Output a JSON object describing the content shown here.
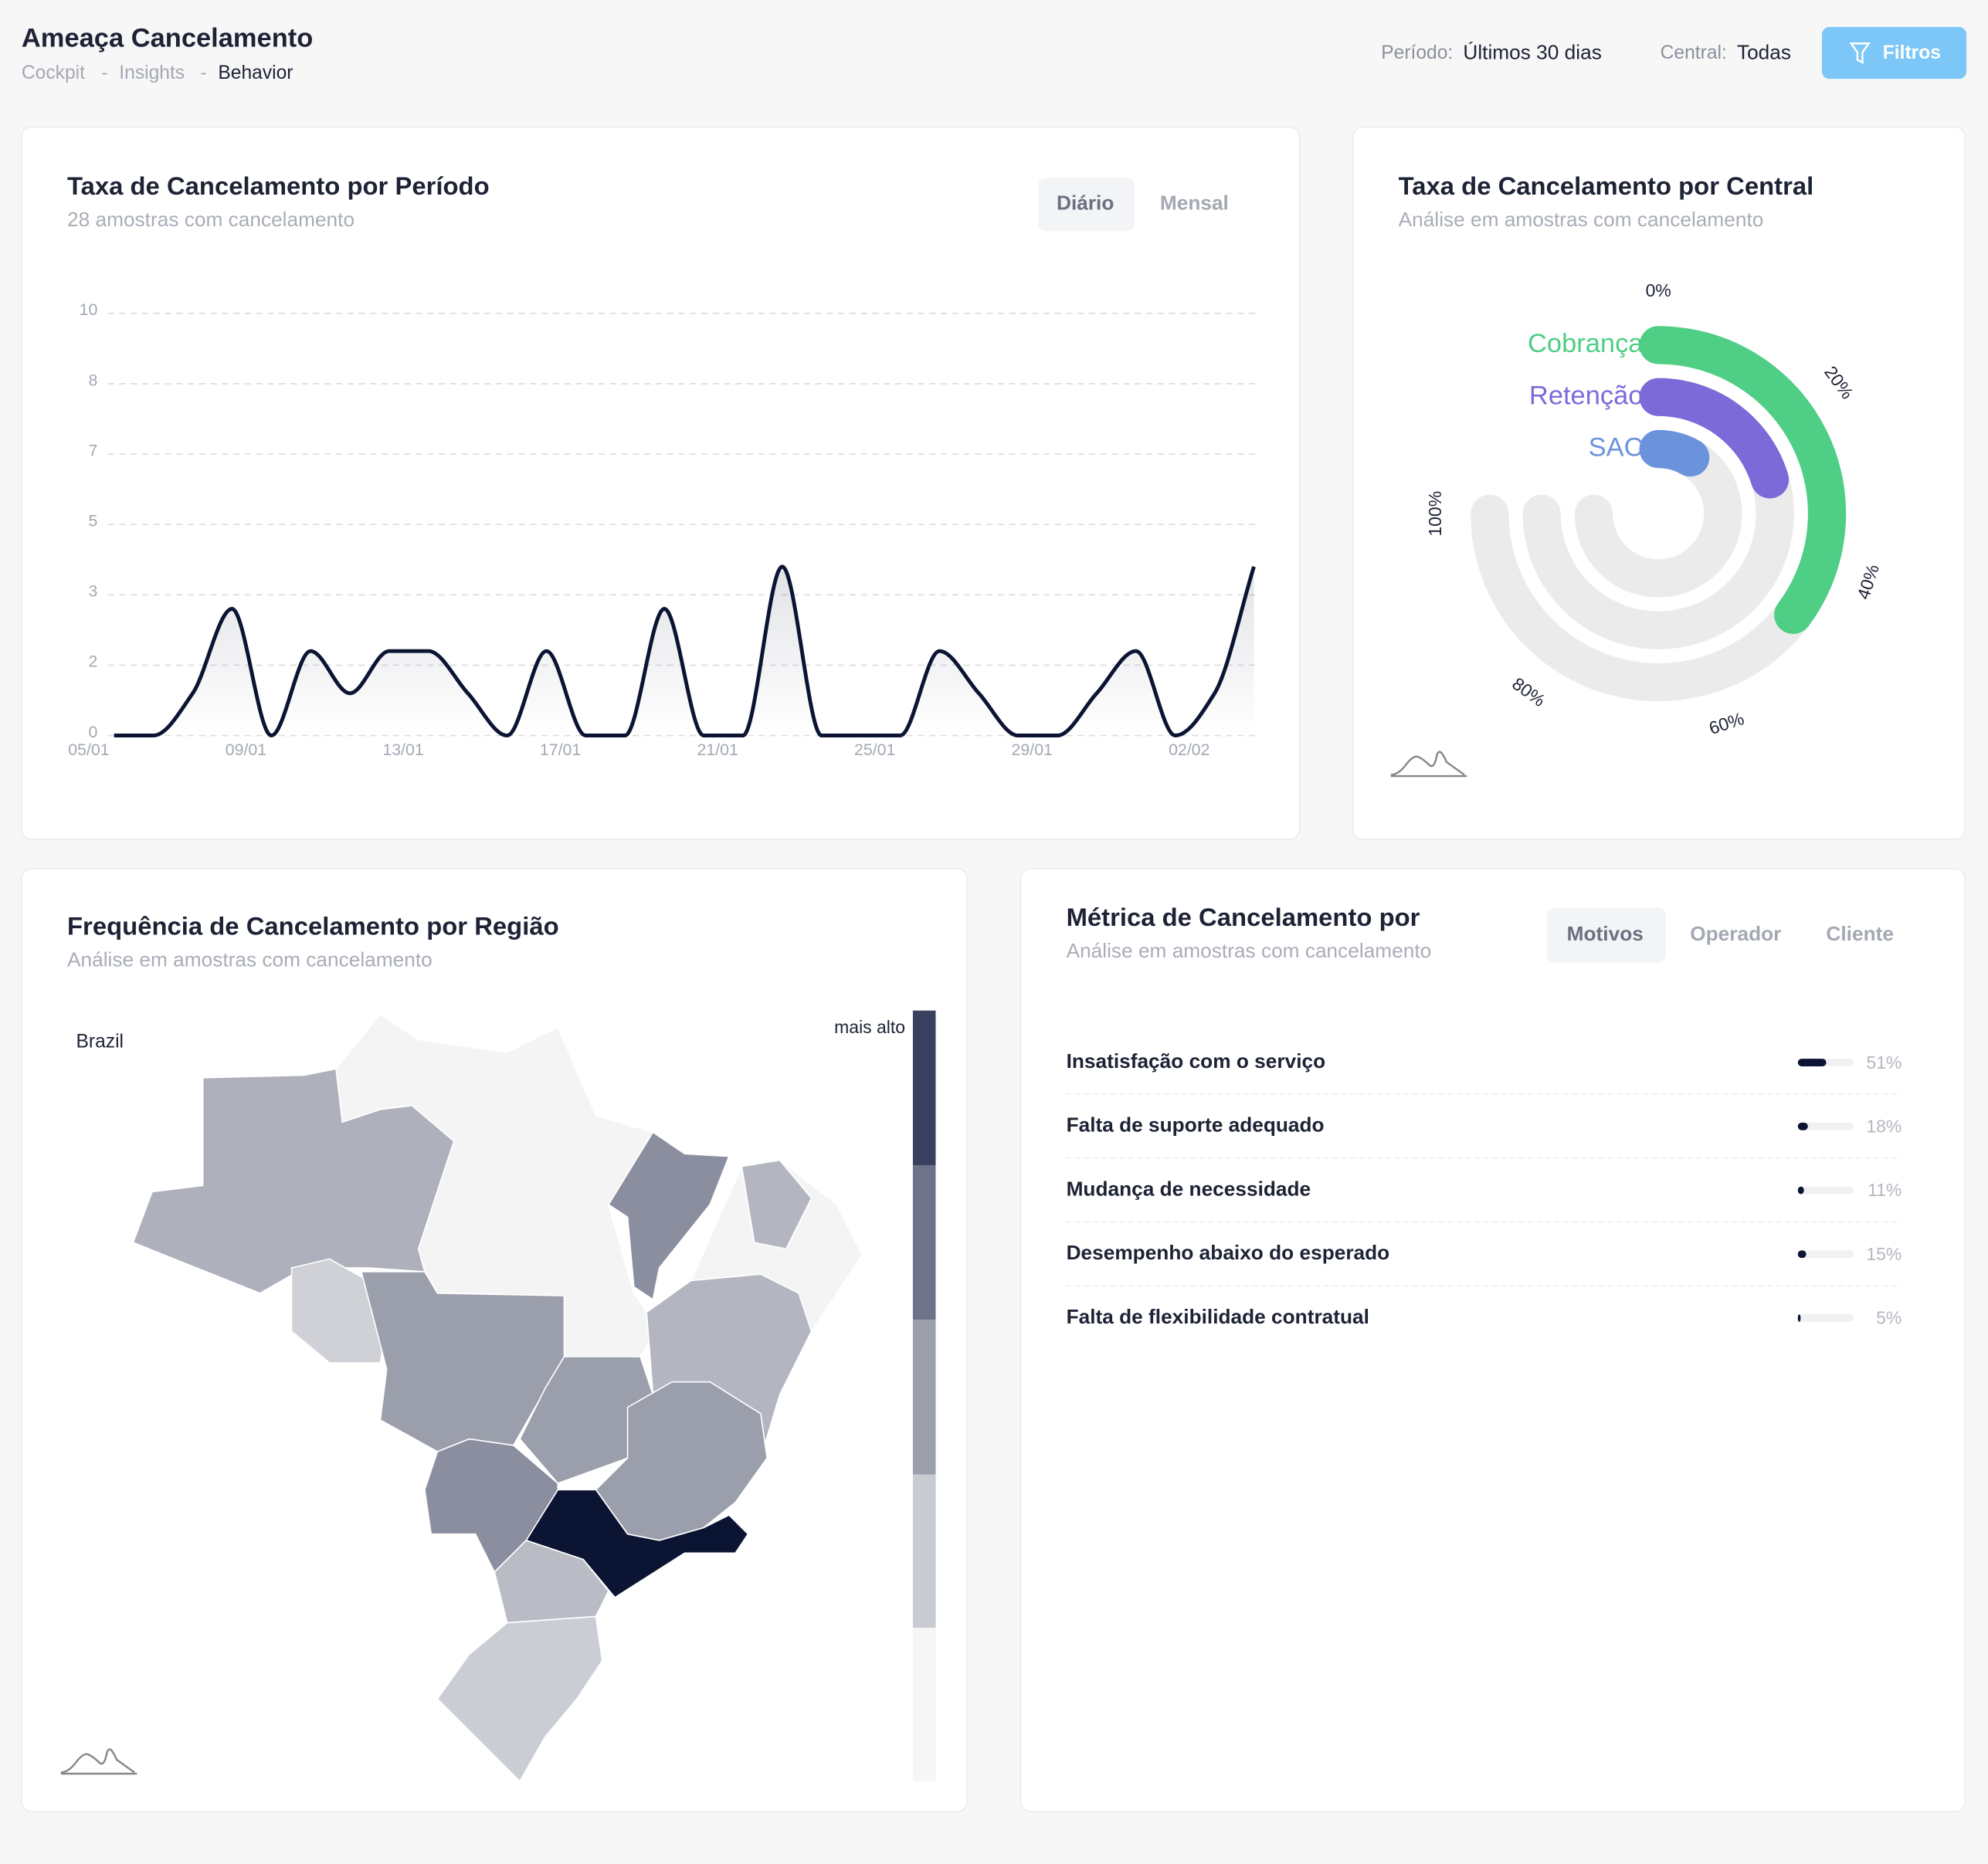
{
  "header": {
    "title": "Ameaça Cancelamento",
    "breadcrumb": [
      "Cockpit",
      "Insights",
      "Behavior"
    ],
    "separator": "-",
    "filters": [
      {
        "label": "Período:",
        "value": "Últimos 30 dias"
      },
      {
        "label": "Central:",
        "value": "Todas"
      }
    ],
    "button": "Filtros"
  },
  "chart_data": [
    {
      "type": "line",
      "title": "Taxa de Cancelamento por Período",
      "subtitle": "28 amostras com cancelamento",
      "tabs": [
        "Diário",
        "Mensal"
      ],
      "active_tab": 0,
      "categories": [
        "05/01",
        null,
        null,
        null,
        "09/01",
        null,
        null,
        null,
        "13/01",
        null,
        null,
        null,
        "17/01",
        null,
        null,
        null,
        "21/01",
        null,
        null,
        null,
        "25/01",
        null,
        null,
        null,
        "29/01",
        null,
        null,
        null,
        "02/02",
        null
      ],
      "values": [
        0,
        0,
        1,
        3,
        0,
        2,
        1,
        2,
        2,
        1,
        0,
        2,
        0,
        0,
        3,
        0,
        0,
        4,
        0,
        0,
        0,
        2,
        1,
        0,
        0,
        1,
        2,
        0,
        1,
        4
      ],
      "color": "#0b1533",
      "ylim": [
        0,
        10
      ],
      "yticks": [
        0,
        {
          "value": 1.667,
          "label": "2"
        },
        {
          "value": 3.333,
          "label": "3"
        },
        5,
        {
          "value": 6.667,
          "label": "7"
        },
        {
          "value": 8.333,
          "label": "8"
        },
        10
      ],
      "grid": true
    },
    {
      "type": "radial_bar",
      "title": "Taxa de Cancelamento por Central",
      "subtitle": "Análise em amostras com cancelamento",
      "categories": [
        "Cobrança",
        "Retenção",
        "SAC"
      ],
      "values": [
        47,
        27,
        11
      ],
      "colors": [
        "#4fce85",
        "#7d6ad9",
        "#6a93db"
      ],
      "xlim": [
        0,
        100
      ],
      "xticks": [
        {
          "value": 0,
          "label": "0%"
        },
        {
          "value": 20,
          "label": "20%"
        },
        {
          "value": 40,
          "label": "40%"
        },
        {
          "value": 60,
          "label": "60%"
        },
        {
          "value": 80,
          "label": "80%"
        },
        {
          "value": 100,
          "label": "100%"
        }
      ]
    },
    {
      "type": "bar",
      "title": "Métrica de Cancelamento por",
      "subtitle": "Análise em amostras com cancelamento",
      "tabs": [
        "Motivos",
        "Operador",
        "Cliente"
      ],
      "active_tab": 0,
      "categories": [
        "Insatisfação com o serviço",
        "Falta de suporte adequado",
        "Mudança de necessidade",
        "Desempenho abaixo do esperado",
        "Falta de flexibilidade contratual"
      ],
      "values": [
        51,
        18,
        11,
        15,
        5
      ],
      "value_labels": [
        "51%",
        "18%",
        "11%",
        "15%",
        "5%"
      ],
      "color": "#0b1533",
      "xlim": [
        0,
        100
      ]
    }
  ],
  "map": {
    "title": "Frequência de Cancelamento por Região",
    "subtitle": "Análise em amostras com cancelamento",
    "country": "Brazil",
    "legend_label": "mais alto"
  }
}
